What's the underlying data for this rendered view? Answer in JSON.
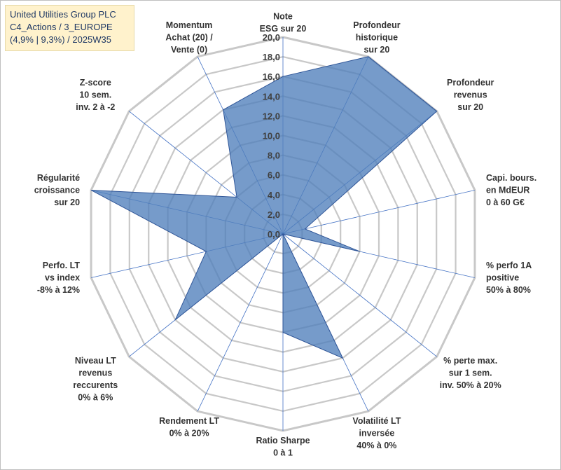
{
  "header": {
    "line1": "United Utilities Group PLC",
    "line2": "C4_Actions / 3_EUROPE",
    "line3": "(4,9% | 9,3%) / 2025W35"
  },
  "chart_data": {
    "type": "radar",
    "rmin": 0,
    "rmax": 20,
    "tick_step": 2,
    "tick_labels": [
      "0,0",
      "2,0",
      "4,0",
      "6,0",
      "8,0",
      "10,0",
      "12,0",
      "14,0",
      "16,0",
      "18,0",
      "20,0"
    ],
    "fill_color": "#4f7fbb",
    "grid_color": "#c8c8c8",
    "axis_color": "#4472c4",
    "axes": [
      {
        "label": [
          "Note",
          "ESG sur 20"
        ],
        "value": 16.0
      },
      {
        "label": [
          "Profondeur",
          "historique",
          "sur 20"
        ],
        "value": 20.0
      },
      {
        "label": [
          "Profondeur",
          "revenus",
          "sur 20"
        ],
        "value": 20.0
      },
      {
        "label": [
          "Capi. bours.",
          "en MdEUR",
          "0 à 60 G€"
        ],
        "value": 2.3
      },
      {
        "label": [
          "% perfo 1A",
          "positive",
          "50% à 80%"
        ],
        "value": 8.0
      },
      {
        "label": [
          "% perte max.",
          "sur 1 sem.",
          "inv. 50% à 20%"
        ],
        "value": 0.0
      },
      {
        "label": [
          "Volatilité LT",
          "inversée",
          "40% à 0%"
        ],
        "value": 14.0
      },
      {
        "label": [
          "Ratio Sharpe",
          "0 à 1"
        ],
        "value": 10.0
      },
      {
        "label": [
          "Rendement LT",
          "0% à 20%"
        ],
        "value": 0.0
      },
      {
        "label": [
          "Niveau LT",
          "revenus",
          "reccurents",
          "0% à 6%"
        ],
        "value": 14.0
      },
      {
        "label": [
          "Perfo. LT",
          "vs index",
          "-8% à 12%"
        ],
        "value": 8.0
      },
      {
        "label": [
          "Régularité",
          "croissance",
          "sur 20"
        ],
        "value": 20.0
      },
      {
        "label": [
          "Z-score",
          "10 sem.",
          "inv. 2 à -2"
        ],
        "value": 6.0
      },
      {
        "label": [
          "Momentum",
          "Achat (20) /",
          "Vente (0)"
        ],
        "value": 14.0
      }
    ]
  }
}
